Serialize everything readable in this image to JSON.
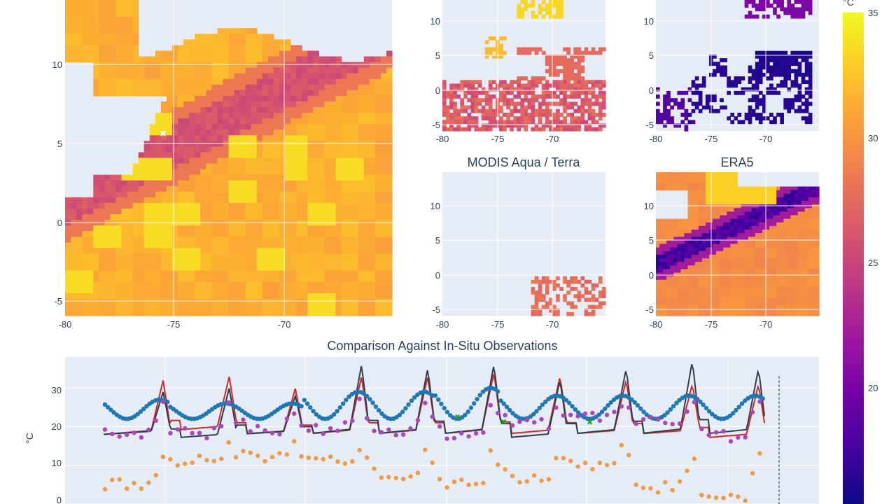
{
  "colors": {
    "plot_bg": "#e5ecf6",
    "grid": "#ffffff",
    "text": "#2a3f5f",
    "colorscale": [
      "#0d0887",
      "#46039f",
      "#7201a8",
      "#9c179e",
      "#bd3786",
      "#d8576b",
      "#ed7953",
      "#fb9f3a",
      "#fdca26",
      "#f0f921"
    ]
  },
  "maps": [
    {
      "id": "main",
      "title": "",
      "xticks": [
        "-80",
        "-75",
        "-70"
      ],
      "yticks": [
        "10",
        "5",
        "0",
        "-5"
      ]
    },
    {
      "id": "top-mid",
      "title": "",
      "xticks": [
        "-80",
        "-75",
        "-70"
      ],
      "yticks": [
        "10",
        "5",
        "0",
        "-5"
      ]
    },
    {
      "id": "top-right",
      "title": "",
      "xticks": [
        "-80",
        "-75",
        "-70"
      ],
      "yticks": [
        "10",
        "5",
        "0",
        "-5"
      ]
    },
    {
      "id": "modis",
      "title": "MODIS Aqua / Terra",
      "xticks": [
        "-80",
        "-75",
        "-70"
      ],
      "yticks": [
        "10",
        "5",
        "0",
        "-5"
      ]
    },
    {
      "id": "era5",
      "title": "ERA5",
      "xticks": [
        "-80",
        "-75",
        "-70"
      ],
      "yticks": [
        "10",
        "5",
        "0",
        "-5"
      ]
    }
  ],
  "colorbar": {
    "unit": "°C",
    "ticks": [
      "35",
      "30",
      "25",
      "20"
    ],
    "range": [
      15,
      35
    ]
  },
  "chart_data": {
    "type": "line",
    "title": "Comparison Against In-Situ Observations",
    "ylabel": "°C",
    "xlabel": "",
    "ylim": [
      0,
      38
    ],
    "yticks": [
      "30",
      "20",
      "10",
      "0"
    ],
    "grid": true,
    "cycles": 10,
    "series": [
      {
        "style": "line",
        "color": "#d62728",
        "cycle_peak": [
          32,
          33,
          30,
          33,
          33,
          34,
          33,
          32,
          31,
          31
        ],
        "cycle_base": [
          18,
          19,
          18,
          18,
          18,
          18,
          18,
          18,
          18,
          17
        ]
      },
      {
        "style": "line",
        "color": "#2f3e4e",
        "cycle_peak": [
          29,
          30,
          28,
          36,
          35,
          36,
          32,
          35,
          37,
          35
        ],
        "cycle_base": [
          18,
          17,
          18,
          18,
          18,
          18,
          17,
          18,
          18,
          18
        ]
      },
      {
        "style": "markers",
        "color": "#1f77b4",
        "cycle_peak": [
          27,
          26,
          26,
          29,
          29,
          30,
          28,
          28,
          28,
          28
        ],
        "cycle_base": [
          22,
          22,
          22,
          22,
          22,
          22,
          22,
          22,
          22,
          22
        ]
      },
      {
        "style": "markers",
        "color": "#ab47bc",
        "cycle_peak": [
          27,
          26,
          25,
          28,
          29,
          29,
          27,
          27,
          27,
          27
        ],
        "cycle_base": [
          18,
          18,
          19,
          19,
          18,
          18,
          20,
          22,
          21,
          17
        ]
      },
      {
        "style": "markers",
        "color": "#f09a45",
        "cycle_peak": [
          11,
          15,
          17,
          14,
          15,
          16,
          16,
          16,
          14,
          15
        ],
        "cycle_base": [
          5,
          11,
          12,
          11,
          7,
          5,
          6,
          10,
          4,
          1
        ]
      },
      {
        "style": "markers",
        "color": "#2ca02c",
        "points": [
          [
            5.35,
            22.5
          ],
          [
            6.05,
            21.3
          ],
          [
            7.35,
            21.2
          ]
        ]
      }
    ]
  }
}
